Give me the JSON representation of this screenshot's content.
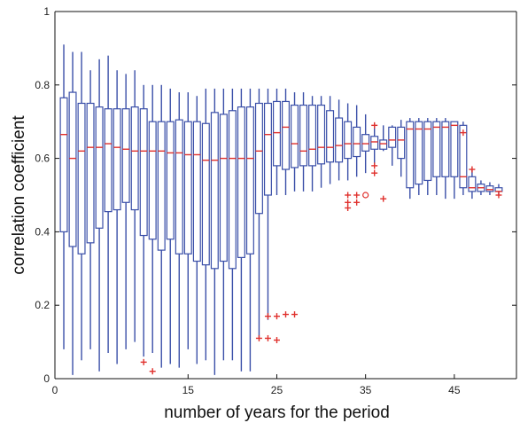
{
  "chart_data": {
    "type": "box",
    "title": "",
    "xlabel": "number of years for the period",
    "ylabel": "correlation coefficient",
    "xlim": [
      0,
      52
    ],
    "ylim": [
      0,
      1
    ],
    "xticks": [
      0,
      15,
      25,
      35,
      45
    ],
    "yticks": [
      0,
      0.2,
      0.4,
      0.6,
      0.8,
      1
    ],
    "box_color": "#3a4fa8",
    "median_color": "#e0312d",
    "outlier_color": "#e0312d",
    "boxes": [
      {
        "x": 1,
        "whisker_low": 0.08,
        "q1": 0.4,
        "median": 0.665,
        "q3": 0.765,
        "whisker_high": 0.91
      },
      {
        "x": 2,
        "whisker_low": 0.01,
        "q1": 0.36,
        "median": 0.6,
        "q3": 0.78,
        "whisker_high": 0.89
      },
      {
        "x": 3,
        "whisker_low": 0.05,
        "q1": 0.34,
        "median": 0.62,
        "q3": 0.75,
        "whisker_high": 0.89
      },
      {
        "x": 4,
        "whisker_low": 0.08,
        "q1": 0.37,
        "median": 0.63,
        "q3": 0.75,
        "whisker_high": 0.84
      },
      {
        "x": 5,
        "whisker_low": 0.02,
        "q1": 0.41,
        "median": 0.63,
        "q3": 0.74,
        "whisker_high": 0.87
      },
      {
        "x": 6,
        "whisker_low": 0.07,
        "q1": 0.455,
        "median": 0.64,
        "q3": 0.735,
        "whisker_high": 0.88
      },
      {
        "x": 7,
        "whisker_low": 0.04,
        "q1": 0.46,
        "median": 0.63,
        "q3": 0.735,
        "whisker_high": 0.84
      },
      {
        "x": 8,
        "whisker_low": 0.08,
        "q1": 0.48,
        "median": 0.625,
        "q3": 0.735,
        "whisker_high": 0.83
      },
      {
        "x": 9,
        "whisker_low": 0.1,
        "q1": 0.46,
        "median": 0.62,
        "q3": 0.74,
        "whisker_high": 0.84
      },
      {
        "x": 10,
        "whisker_low": 0.06,
        "q1": 0.39,
        "median": 0.62,
        "q3": 0.735,
        "whisker_high": 0.8
      },
      {
        "x": 11,
        "whisker_low": 0.07,
        "q1": 0.38,
        "median": 0.62,
        "q3": 0.7,
        "whisker_high": 0.8
      },
      {
        "x": 12,
        "whisker_low": 0.03,
        "q1": 0.35,
        "median": 0.62,
        "q3": 0.7,
        "whisker_high": 0.8
      },
      {
        "x": 13,
        "whisker_low": 0.04,
        "q1": 0.38,
        "median": 0.615,
        "q3": 0.7,
        "whisker_high": 0.79
      },
      {
        "x": 14,
        "whisker_low": 0.03,
        "q1": 0.34,
        "median": 0.615,
        "q3": 0.705,
        "whisker_high": 0.78
      },
      {
        "x": 15,
        "whisker_low": 0.08,
        "q1": 0.34,
        "median": 0.61,
        "q3": 0.7,
        "whisker_high": 0.78
      },
      {
        "x": 16,
        "whisker_low": 0.04,
        "q1": 0.32,
        "median": 0.61,
        "q3": 0.7,
        "whisker_high": 0.77
      },
      {
        "x": 17,
        "whisker_low": 0.05,
        "q1": 0.31,
        "median": 0.595,
        "q3": 0.695,
        "whisker_high": 0.79
      },
      {
        "x": 18,
        "whisker_low": 0.01,
        "q1": 0.3,
        "median": 0.595,
        "q3": 0.725,
        "whisker_high": 0.79
      },
      {
        "x": 19,
        "whisker_low": 0.05,
        "q1": 0.32,
        "median": 0.6,
        "q3": 0.72,
        "whisker_high": 0.79
      },
      {
        "x": 20,
        "whisker_low": 0.05,
        "q1": 0.3,
        "median": 0.6,
        "q3": 0.73,
        "whisker_high": 0.79
      },
      {
        "x": 21,
        "whisker_low": 0.02,
        "q1": 0.33,
        "median": 0.6,
        "q3": 0.74,
        "whisker_high": 0.79
      },
      {
        "x": 22,
        "whisker_low": 0.02,
        "q1": 0.34,
        "median": 0.6,
        "q3": 0.74,
        "whisker_high": 0.79
      },
      {
        "x": 23,
        "whisker_low": 0.11,
        "q1": 0.45,
        "median": 0.62,
        "q3": 0.75,
        "whisker_high": 0.79
      },
      {
        "x": 24,
        "whisker_low": 0.16,
        "q1": 0.5,
        "median": 0.665,
        "q3": 0.75,
        "whisker_high": 0.79
      },
      {
        "x": 25,
        "whisker_low": 0.5,
        "q1": 0.58,
        "median": 0.67,
        "q3": 0.755,
        "whisker_high": 0.79
      },
      {
        "x": 26,
        "whisker_low": 0.5,
        "q1": 0.57,
        "median": 0.685,
        "q3": 0.755,
        "whisker_high": 0.79
      },
      {
        "x": 27,
        "whisker_low": 0.51,
        "q1": 0.575,
        "median": 0.64,
        "q3": 0.745,
        "whisker_high": 0.78
      },
      {
        "x": 28,
        "whisker_low": 0.51,
        "q1": 0.58,
        "median": 0.62,
        "q3": 0.745,
        "whisker_high": 0.78
      },
      {
        "x": 29,
        "whisker_low": 0.51,
        "q1": 0.58,
        "median": 0.625,
        "q3": 0.745,
        "whisker_high": 0.77
      },
      {
        "x": 30,
        "whisker_low": 0.52,
        "q1": 0.585,
        "median": 0.63,
        "q3": 0.745,
        "whisker_high": 0.77
      },
      {
        "x": 31,
        "whisker_low": 0.53,
        "q1": 0.59,
        "median": 0.63,
        "q3": 0.73,
        "whisker_high": 0.77
      },
      {
        "x": 32,
        "whisker_low": 0.54,
        "q1": 0.59,
        "median": 0.635,
        "q3": 0.71,
        "whisker_high": 0.76
      },
      {
        "x": 33,
        "whisker_low": 0.54,
        "q1": 0.6,
        "median": 0.64,
        "q3": 0.7,
        "whisker_high": 0.75
      },
      {
        "x": 34,
        "whisker_low": 0.55,
        "q1": 0.605,
        "median": 0.64,
        "q3": 0.685,
        "whisker_high": 0.745
      },
      {
        "x": 35,
        "whisker_low": 0.56,
        "q1": 0.62,
        "median": 0.64,
        "q3": 0.665,
        "whisker_high": 0.72
      },
      {
        "x": 36,
        "whisker_low": 0.58,
        "q1": 0.625,
        "median": 0.645,
        "q3": 0.66,
        "whisker_high": 0.695
      },
      {
        "x": 37,
        "whisker_low": 0.62,
        "q1": 0.625,
        "median": 0.64,
        "q3": 0.65,
        "whisker_high": 0.69
      },
      {
        "x": 38,
        "whisker_low": 0.58,
        "q1": 0.63,
        "median": 0.65,
        "q3": 0.685,
        "whisker_high": 0.69
      },
      {
        "x": 39,
        "whisker_low": 0.55,
        "q1": 0.6,
        "median": 0.65,
        "q3": 0.685,
        "whisker_high": 0.705
      },
      {
        "x": 40,
        "whisker_low": 0.49,
        "q1": 0.52,
        "median": 0.68,
        "q3": 0.7,
        "whisker_high": 0.71
      },
      {
        "x": 41,
        "whisker_low": 0.5,
        "q1": 0.53,
        "median": 0.68,
        "q3": 0.7,
        "whisker_high": 0.71
      },
      {
        "x": 42,
        "whisker_low": 0.5,
        "q1": 0.54,
        "median": 0.68,
        "q3": 0.7,
        "whisker_high": 0.71
      },
      {
        "x": 43,
        "whisker_low": 0.5,
        "q1": 0.55,
        "median": 0.685,
        "q3": 0.7,
        "whisker_high": 0.71
      },
      {
        "x": 44,
        "whisker_low": 0.49,
        "q1": 0.55,
        "median": 0.685,
        "q3": 0.7,
        "whisker_high": 0.71
      },
      {
        "x": 45,
        "whisker_low": 0.49,
        "q1": 0.55,
        "median": 0.69,
        "q3": 0.7,
        "whisker_high": 0.7
      },
      {
        "x": 46,
        "whisker_low": 0.5,
        "q1": 0.52,
        "median": 0.55,
        "q3": 0.69,
        "whisker_high": 0.7
      },
      {
        "x": 47,
        "whisker_low": 0.49,
        "q1": 0.51,
        "median": 0.52,
        "q3": 0.55,
        "whisker_high": 0.57
      },
      {
        "x": 48,
        "whisker_low": 0.5,
        "q1": 0.51,
        "median": 0.52,
        "q3": 0.53,
        "whisker_high": 0.54
      },
      {
        "x": 49,
        "whisker_low": 0.5,
        "q1": 0.51,
        "median": 0.515,
        "q3": 0.525,
        "whisker_high": 0.535
      },
      {
        "x": 50,
        "whisker_low": 0.5,
        "q1": 0.51,
        "median": 0.51,
        "q3": 0.52,
        "whisker_high": 0.53
      }
    ],
    "outliers": [
      {
        "x": 10,
        "y": 0.045,
        "marker": "+"
      },
      {
        "x": 11,
        "y": 0.02,
        "marker": "+"
      },
      {
        "x": 23,
        "y": 0.11,
        "marker": "+"
      },
      {
        "x": 24,
        "y": 0.11,
        "marker": "+"
      },
      {
        "x": 24,
        "y": 0.17,
        "marker": "+"
      },
      {
        "x": 25,
        "y": 0.17,
        "marker": "+"
      },
      {
        "x": 25,
        "y": 0.105,
        "marker": "+"
      },
      {
        "x": 26,
        "y": 0.175,
        "marker": "+"
      },
      {
        "x": 27,
        "y": 0.175,
        "marker": "+"
      },
      {
        "x": 33,
        "y": 0.5,
        "marker": "+"
      },
      {
        "x": 33,
        "y": 0.48,
        "marker": "+"
      },
      {
        "x": 33,
        "y": 0.465,
        "marker": "+"
      },
      {
        "x": 34,
        "y": 0.5,
        "marker": "+"
      },
      {
        "x": 34,
        "y": 0.48,
        "marker": "+"
      },
      {
        "x": 35,
        "y": 0.5,
        "marker": "o"
      },
      {
        "x": 36,
        "y": 0.69,
        "marker": "+"
      },
      {
        "x": 36,
        "y": 0.58,
        "marker": "+"
      },
      {
        "x": 36,
        "y": 0.56,
        "marker": "+"
      },
      {
        "x": 37,
        "y": 0.49,
        "marker": "+"
      },
      {
        "x": 46,
        "y": 0.67,
        "marker": "+"
      },
      {
        "x": 47,
        "y": 0.57,
        "marker": "+"
      },
      {
        "x": 50,
        "y": 0.5,
        "marker": "+"
      }
    ]
  }
}
